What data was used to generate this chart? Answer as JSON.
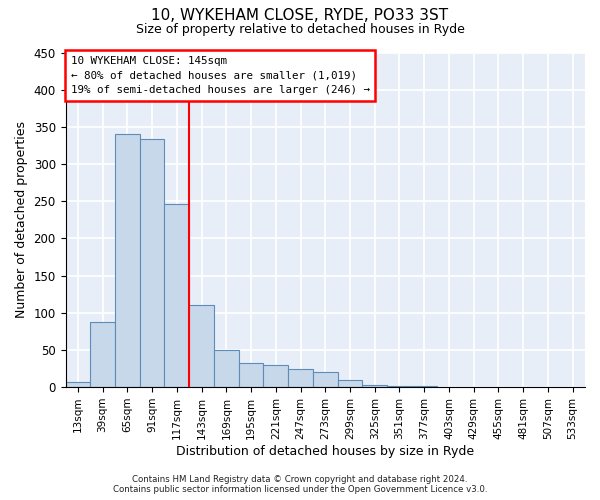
{
  "title": "10, WYKEHAM CLOSE, RYDE, PO33 3ST",
  "subtitle": "Size of property relative to detached houses in Ryde",
  "xlabel": "Distribution of detached houses by size in Ryde",
  "ylabel": "Number of detached properties",
  "bar_color": "#c8d8eb",
  "bar_edge_color": "#5b8db8",
  "background_color": "#e8eef8",
  "grid_color": "#ffffff",
  "tick_labels": [
    "13sqm",
    "39sqm",
    "65sqm",
    "91sqm",
    "117sqm",
    "143sqm",
    "169sqm",
    "195sqm",
    "221sqm",
    "247sqm",
    "273sqm",
    "299sqm",
    "325sqm",
    "351sqm",
    "377sqm",
    "403sqm",
    "429sqm",
    "455sqm",
    "481sqm",
    "507sqm",
    "533sqm"
  ],
  "bar_values": [
    7,
    88,
    340,
    333,
    246,
    110,
    50,
    32,
    30,
    25,
    20,
    9,
    3,
    1,
    1,
    0,
    0,
    0,
    0,
    0,
    0
  ],
  "red_line_index": 5,
  "annotation_title": "10 WYKEHAM CLOSE: 145sqm",
  "annotation_line1": "← 80% of detached houses are smaller (1,019)",
  "annotation_line2": "19% of semi-detached houses are larger (246) →",
  "ylim": [
    0,
    450
  ],
  "yticks": [
    0,
    50,
    100,
    150,
    200,
    250,
    300,
    350,
    400,
    450
  ],
  "footer1": "Contains HM Land Registry data © Crown copyright and database right 2024.",
  "footer2": "Contains public sector information licensed under the Open Government Licence v3.0.",
  "fig_width": 6.0,
  "fig_height": 5.0
}
